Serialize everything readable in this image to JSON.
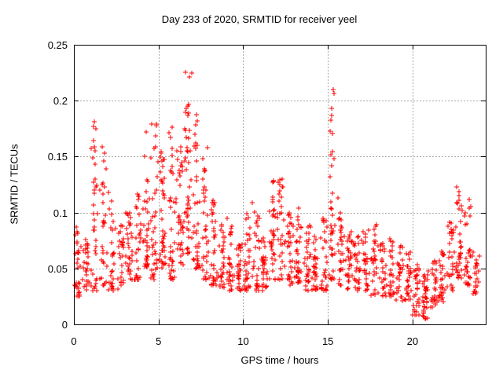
{
  "page": {
    "background": "#ffffff",
    "text_color": "#000000"
  },
  "chart_data": {
    "type": "scatter",
    "title": "Day 233 of 2020, SRMTID for receiver yeel",
    "xlabel": "GPS time / hours",
    "ylabel": "SRMTID / TECUs",
    "xlim": [
      0,
      24.32
    ],
    "ylim": [
      0,
      0.25
    ],
    "xticks": [
      0,
      5,
      10,
      15,
      20
    ],
    "xtick_labels": [
      "0",
      "5",
      "10",
      "15",
      "20"
    ],
    "yticks": [
      0,
      0.05,
      0.1,
      0.15,
      0.2,
      0.25
    ],
    "ytick_labels": [
      "0",
      "0.05",
      "0.1",
      "0.15",
      "0.2",
      "0.25"
    ],
    "grid": "on",
    "grid_style": "dashed",
    "grid_color": "#a8a8a8",
    "border_color": "#000000",
    "legend": "none",
    "series": [
      {
        "name": "SRMTID",
        "marker": "plus",
        "marker_color": "#ff0000",
        "marker_size": 7,
        "points_approx_count": 1480,
        "summary": "TID activity vs GPS time; busy morning sector 0-8h with spikes (0.185 near 1h, 0.185 near 4-5.5h, max 0.228 near 6.7h), moderate 0.03-0.13 midday, isolated spike to 0.21 near 15.3h, quiet trough 0.005-0.05 near 20-21h, rising cluster to 0.125 near 22.5-23h",
        "density_profile": {
          "bin_width_hours": 0.5,
          "columns": [
            "x_start",
            "count",
            "y_min",
            "y_max",
            "low_bias"
          ],
          "bins": [
            [
              0.0,
              30,
              0.025,
              0.09,
              1.4
            ],
            [
              0.5,
              26,
              0.03,
              0.08,
              1.2
            ],
            [
              1.0,
              36,
              0.03,
              0.185,
              2.1
            ],
            [
              1.5,
              30,
              0.035,
              0.16,
              2.0
            ],
            [
              2.0,
              30,
              0.03,
              0.12,
              1.7
            ],
            [
              2.5,
              26,
              0.03,
              0.09,
              1.3
            ],
            [
              3.0,
              30,
              0.04,
              0.1,
              1.3
            ],
            [
              3.5,
              30,
              0.04,
              0.125,
              1.6
            ],
            [
              4.0,
              36,
              0.05,
              0.185,
              1.9
            ],
            [
              4.5,
              36,
              0.04,
              0.18,
              1.8
            ],
            [
              5.0,
              40,
              0.05,
              0.155,
              1.5
            ],
            [
              5.5,
              36,
              0.04,
              0.18,
              1.9
            ],
            [
              6.0,
              40,
              0.05,
              0.16,
              1.4
            ],
            [
              6.5,
              46,
              0.06,
              0.228,
              1.7
            ],
            [
              7.0,
              40,
              0.05,
              0.19,
              1.8
            ],
            [
              7.5,
              34,
              0.04,
              0.16,
              1.8
            ],
            [
              8.0,
              34,
              0.035,
              0.12,
              1.7
            ],
            [
              8.5,
              30,
              0.03,
              0.09,
              1.3
            ],
            [
              9.0,
              30,
              0.03,
              0.1,
              1.5
            ],
            [
              9.5,
              30,
              0.03,
              0.08,
              1.3
            ],
            [
              10.0,
              30,
              0.03,
              0.1,
              1.5
            ],
            [
              10.5,
              30,
              0.03,
              0.115,
              1.7
            ],
            [
              11.0,
              30,
              0.03,
              0.08,
              1.3
            ],
            [
              11.5,
              34,
              0.04,
              0.135,
              1.6
            ],
            [
              12.0,
              34,
              0.04,
              0.13,
              1.6
            ],
            [
              12.5,
              30,
              0.035,
              0.1,
              1.4
            ],
            [
              13.0,
              34,
              0.035,
              0.128,
              1.7
            ],
            [
              13.5,
              30,
              0.03,
              0.09,
              1.4
            ],
            [
              14.0,
              28,
              0.03,
              0.08,
              1.4
            ],
            [
              14.5,
              28,
              0.03,
              0.1,
              1.6
            ],
            [
              15.0,
              42,
              0.04,
              0.21,
              2.0
            ],
            [
              15.5,
              30,
              0.035,
              0.12,
              1.8
            ],
            [
              16.0,
              30,
              0.03,
              0.085,
              1.3
            ],
            [
              16.5,
              28,
              0.03,
              0.08,
              1.3
            ],
            [
              17.0,
              28,
              0.03,
              0.085,
              1.4
            ],
            [
              17.5,
              28,
              0.025,
              0.09,
              1.5
            ],
            [
              18.0,
              28,
              0.025,
              0.075,
              1.3
            ],
            [
              18.5,
              26,
              0.025,
              0.08,
              1.4
            ],
            [
              19.0,
              26,
              0.02,
              0.07,
              1.3
            ],
            [
              19.5,
              26,
              0.02,
              0.065,
              1.3
            ],
            [
              20.0,
              30,
              0.008,
              0.055,
              1.2
            ],
            [
              20.5,
              34,
              0.005,
              0.05,
              1.2
            ],
            [
              21.0,
              28,
              0.015,
              0.06,
              1.2
            ],
            [
              21.5,
              28,
              0.02,
              0.07,
              1.3
            ],
            [
              22.0,
              30,
              0.03,
              0.1,
              1.4
            ],
            [
              22.5,
              36,
              0.04,
              0.125,
              1.5
            ],
            [
              23.0,
              30,
              0.035,
              0.115,
              1.5
            ],
            [
              23.5,
              24,
              0.025,
              0.07,
              1.2
            ]
          ]
        }
      }
    ]
  }
}
